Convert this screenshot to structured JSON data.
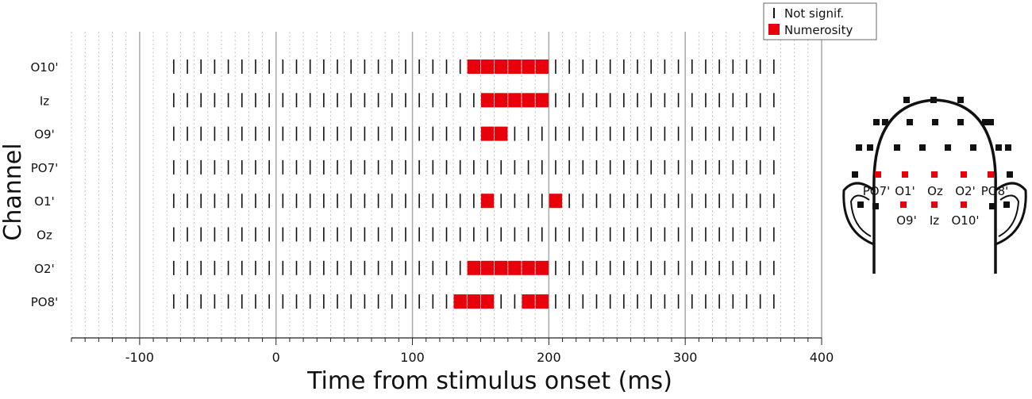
{
  "chart_data": {
    "type": "scatter",
    "title": "",
    "xlabel": "Time from stimulus onset (ms)",
    "ylabel": "Channel",
    "xlim": [
      -150,
      400
    ],
    "x_ticks": [
      -100,
      0,
      100,
      200,
      300,
      400
    ],
    "grid": true,
    "legend_position": "top-right",
    "channels": [
      "O10'",
      "Iz",
      "O9'",
      "PO7'",
      "O1'",
      "Oz",
      "O2'",
      "PO8'"
    ],
    "time_start": -75,
    "time_end": 365,
    "time_step": 10,
    "series": [
      {
        "name": "Not signif.",
        "marker": "tick",
        "color": "#111111"
      },
      {
        "name": "Numerosity",
        "marker": "square",
        "color": "#e8000b",
        "significant_times": {
          "O10'": [
            145,
            155,
            165,
            175,
            185,
            195
          ],
          "Iz": [
            155,
            165,
            175,
            185,
            195
          ],
          "O9'": [
            155,
            165
          ],
          "PO7'": [],
          "O1'": [
            155,
            205
          ],
          "Oz": [],
          "O2'": [
            145,
            155,
            165,
            175,
            185,
            195
          ],
          "PO8'": [
            135,
            145,
            155,
            185,
            195
          ]
        }
      }
    ]
  },
  "head_map": {
    "electrode_labels_row1": [
      "PO7'",
      "O1'",
      "Oz",
      "O2'",
      "PO8'"
    ],
    "electrode_labels_row2": [
      "O9'",
      "Iz",
      "O10'"
    ],
    "highlight_color": "#e8000b",
    "electrode_color": "#111111"
  }
}
